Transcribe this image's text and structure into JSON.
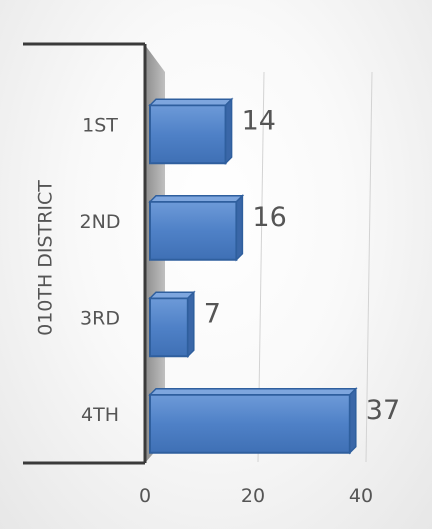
{
  "chart_data": {
    "type": "bar",
    "orientation": "horizontal",
    "group_label": "010TH DISTRICT",
    "categories": [
      "1ST",
      "2ND",
      "3RD",
      "4TH"
    ],
    "values": [
      14,
      16,
      7,
      37
    ],
    "value_labels": [
      "14",
      "16",
      "7",
      "37"
    ],
    "x_ticks": [
      0,
      20,
      40
    ],
    "x_tick_labels": [
      "0",
      "20",
      "40"
    ],
    "xlim": [
      0,
      40
    ],
    "grid": true,
    "bar_color": "#4f81c7",
    "bar_edge_color": "#2f5f9e"
  }
}
